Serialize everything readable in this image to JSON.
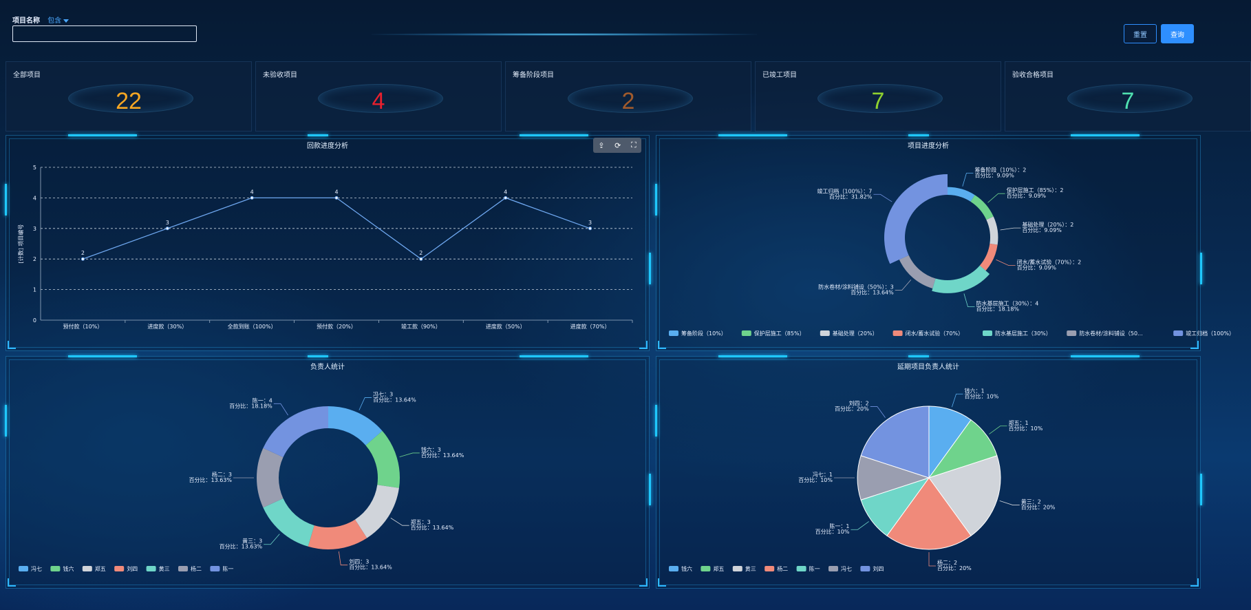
{
  "filter": {
    "label": "项目名称",
    "mode": "包含",
    "value": ""
  },
  "buttons": {
    "reset": "重置",
    "query": "查询"
  },
  "stats": [
    {
      "title": "全部项目",
      "value": "22",
      "color": "#f5a623"
    },
    {
      "title": "未验收项目",
      "value": "4",
      "color": "#e8202e"
    },
    {
      "title": "筹备阶段项目",
      "value": "2",
      "color": "#a05a2c"
    },
    {
      "title": "已竣工项目",
      "value": "7",
      "color": "#8fd12f"
    },
    {
      "title": "验收合格项目",
      "value": "7",
      "color": "#4fe0b0"
    }
  ],
  "panels": {
    "payment": {
      "title": "回款进度分析"
    },
    "progress": {
      "title": "项目进度分析"
    },
    "owner": {
      "title": "负责人统计"
    },
    "delayed": {
      "title": "延期项目负责人统计"
    }
  },
  "toolbox": {
    "save": "⇪",
    "refresh": "⟳",
    "fullscreen": "⛶"
  },
  "chart_data": [
    {
      "type": "line",
      "title": "回款进度分析",
      "ylabel": "[计数] 项目编号",
      "categories": [
        "预付款（10%）",
        "进度款（30%）",
        "全款到账（100%）",
        "预付款（20%）",
        "竣工款（90%）",
        "进度款（50%）",
        "进度款（70%）"
      ],
      "values": [
        2,
        3,
        4,
        4,
        2,
        4,
        3
      ],
      "ylim": [
        0,
        5
      ],
      "yticks": [
        "0",
        "1",
        "2",
        "3",
        "4",
        "5"
      ],
      "color": "#6fa8f0",
      "grid": true
    },
    {
      "type": "pie",
      "title": "项目进度分析",
      "donut": true,
      "rose": true,
      "slices": [
        {
          "name": "筹备阶段（10%）",
          "value": 2,
          "label": "筹备阶段（10%）：2",
          "pct": "百分比：9.09%",
          "color": "#5aaef0"
        },
        {
          "name": "保护层施工（85%）",
          "value": 2,
          "label": "保护层施工（85%）：2",
          "pct": "百分比：9.09%",
          "color": "#6fd38c"
        },
        {
          "name": "基础处理（20%）",
          "value": 2,
          "label": "基础处理（20%）：2",
          "pct": "百分比：9.09%",
          "color": "#d0d4da"
        },
        {
          "name": "闭水/蓄水试验（70%）",
          "value": 2,
          "label": "闭水/蓄水试验（70%）：2",
          "pct": "百分比：9.09%",
          "color": "#f08a7a"
        },
        {
          "name": "防水基层施工（30%）",
          "value": 4,
          "label": "防水基层施工（30%）：4",
          "pct": "百分比：18.18%",
          "color": "#6fd6c8"
        },
        {
          "name": "防水卷材/涂料铺设（50%）",
          "value": 3,
          "label": "防水卷材/涂料铺设（50%）：3",
          "pct": "百分比：13.64%",
          "color": "#9a9eb0"
        },
        {
          "name": "竣工归档（100%）",
          "value": 7,
          "label": "竣工归档（100%）：7",
          "pct": "百分比：31.82%",
          "color": "#7393e0"
        }
      ],
      "legend": [
        "筹备阶段（10%）",
        "保护层施工（85%）",
        "基础处理（20%）",
        "闭水/蓄水试验（70%）",
        "防水基层施工（30%）",
        "防水卷材/涂料铺设（50...",
        "竣工归档（100%）"
      ]
    },
    {
      "type": "pie",
      "title": "负责人统计",
      "donut": true,
      "slices": [
        {
          "name": "冯七",
          "value": 3,
          "label": "冯七：3",
          "pct": "百分比：13.64%",
          "color": "#5aaef0"
        },
        {
          "name": "钱六",
          "value": 3,
          "label": "钱六：3",
          "pct": "百分比：13.64%",
          "color": "#6fd38c"
        },
        {
          "name": "郑五",
          "value": 3,
          "label": "郑五：3",
          "pct": "百分比：13.64%",
          "color": "#d0d4da"
        },
        {
          "name": "刘四",
          "value": 3,
          "label": "刘四：3",
          "pct": "百分比：13.64%",
          "color": "#f08a7a"
        },
        {
          "name": "黄三",
          "value": 3,
          "label": "黄三：3",
          "pct": "百分比：13.63%",
          "color": "#6fd6c8"
        },
        {
          "name": "杨二",
          "value": 3,
          "label": "杨二：3",
          "pct": "百分比：13.63%",
          "color": "#9a9eb0"
        },
        {
          "name": "陈一",
          "value": 4,
          "label": "陈一：4",
          "pct": "百分比：18.18%",
          "color": "#7393e0"
        }
      ],
      "legend": [
        "冯七",
        "钱六",
        "郑五",
        "刘四",
        "黄三",
        "杨二",
        "陈一"
      ]
    },
    {
      "type": "pie",
      "title": "延期项目负责人统计",
      "donut": false,
      "slices": [
        {
          "name": "钱六",
          "value": 1,
          "label": "钱六：1",
          "pct": "百分比：10%",
          "color": "#5aaef0"
        },
        {
          "name": "郑五",
          "value": 1,
          "label": "郑五：1",
          "pct": "百分比：10%",
          "color": "#6fd38c"
        },
        {
          "name": "黄三",
          "value": 2,
          "label": "黄三：2",
          "pct": "百分比：20%",
          "color": "#d0d4da"
        },
        {
          "name": "杨二",
          "value": 2,
          "label": "杨二：2",
          "pct": "百分比：20%",
          "color": "#f08a7a"
        },
        {
          "name": "陈一",
          "value": 1,
          "label": "陈一：1",
          "pct": "百分比：10%",
          "color": "#6fd6c8"
        },
        {
          "name": "冯七",
          "value": 1,
          "label": "冯七：1",
          "pct": "百分比：10%",
          "color": "#9a9eb0"
        },
        {
          "name": "刘四",
          "value": 2,
          "label": "刘四：2",
          "pct": "百分比：20%",
          "color": "#7393e0"
        }
      ],
      "legend": [
        "钱六",
        "郑五",
        "黄三",
        "杨二",
        "陈一",
        "冯七",
        "刘四"
      ]
    }
  ]
}
